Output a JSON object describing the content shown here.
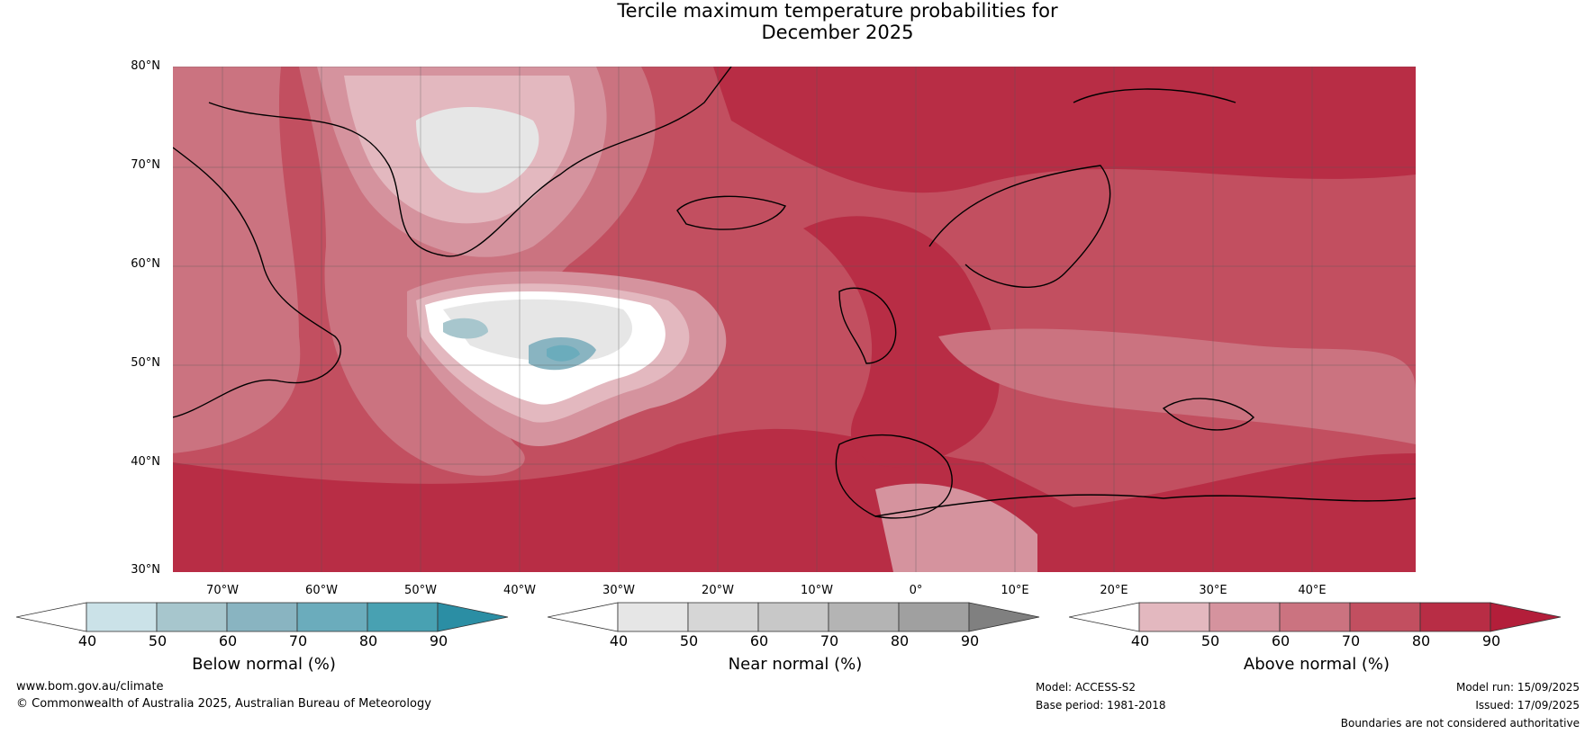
{
  "title_line1": "Tercile maximum temperature probabilities for",
  "title_line2": "December 2025",
  "lat_labels": [
    "80°N",
    "70°N",
    "60°N",
    "50°N",
    "40°N",
    "30°N"
  ],
  "lon_labels": [
    "70°W",
    "60°W",
    "50°W",
    "40°W",
    "30°W",
    "20°W",
    "10°W",
    "0°",
    "10°E",
    "20°E",
    "30°E",
    "40°E"
  ],
  "colorbars": [
    {
      "title": "Below normal (%)",
      "ticks": [
        "40",
        "50",
        "60",
        "70",
        "80",
        "90"
      ],
      "colors": [
        "#ffffff",
        "#cbe2e8",
        "#a7c6cd",
        "#89b4c1",
        "#6bacbc",
        "#48a1b2",
        "#2b8ea4"
      ]
    },
    {
      "title": "Near normal (%)",
      "ticks": [
        "40",
        "50",
        "60",
        "70",
        "80",
        "90"
      ],
      "colors": [
        "#ffffff",
        "#e6e6e6",
        "#d6d6d6",
        "#c8c8c8",
        "#b4b4b4",
        "#a0a0a0",
        "#808080"
      ]
    },
    {
      "title": "Above normal (%)",
      "ticks": [
        "40",
        "50",
        "60",
        "70",
        "80",
        "90"
      ],
      "colors": [
        "#ffffff",
        "#e3b8bf",
        "#d5939e",
        "#cb7380",
        "#c24f60",
        "#b82d45",
        "#b31e3a"
      ]
    }
  ],
  "footer": {
    "website": "www.bom.gov.au/climate",
    "copyright": "© Commonwealth of Australia 2025, Australian Bureau of Meteorology",
    "model": "Model: ACCESS-S2",
    "base_period": "Base period: 1981-2018",
    "model_run": "Model run: 15/09/2025",
    "issued": "Issued: 17/09/2025",
    "disclaimer": "Boundaries are not considered authoritative"
  }
}
